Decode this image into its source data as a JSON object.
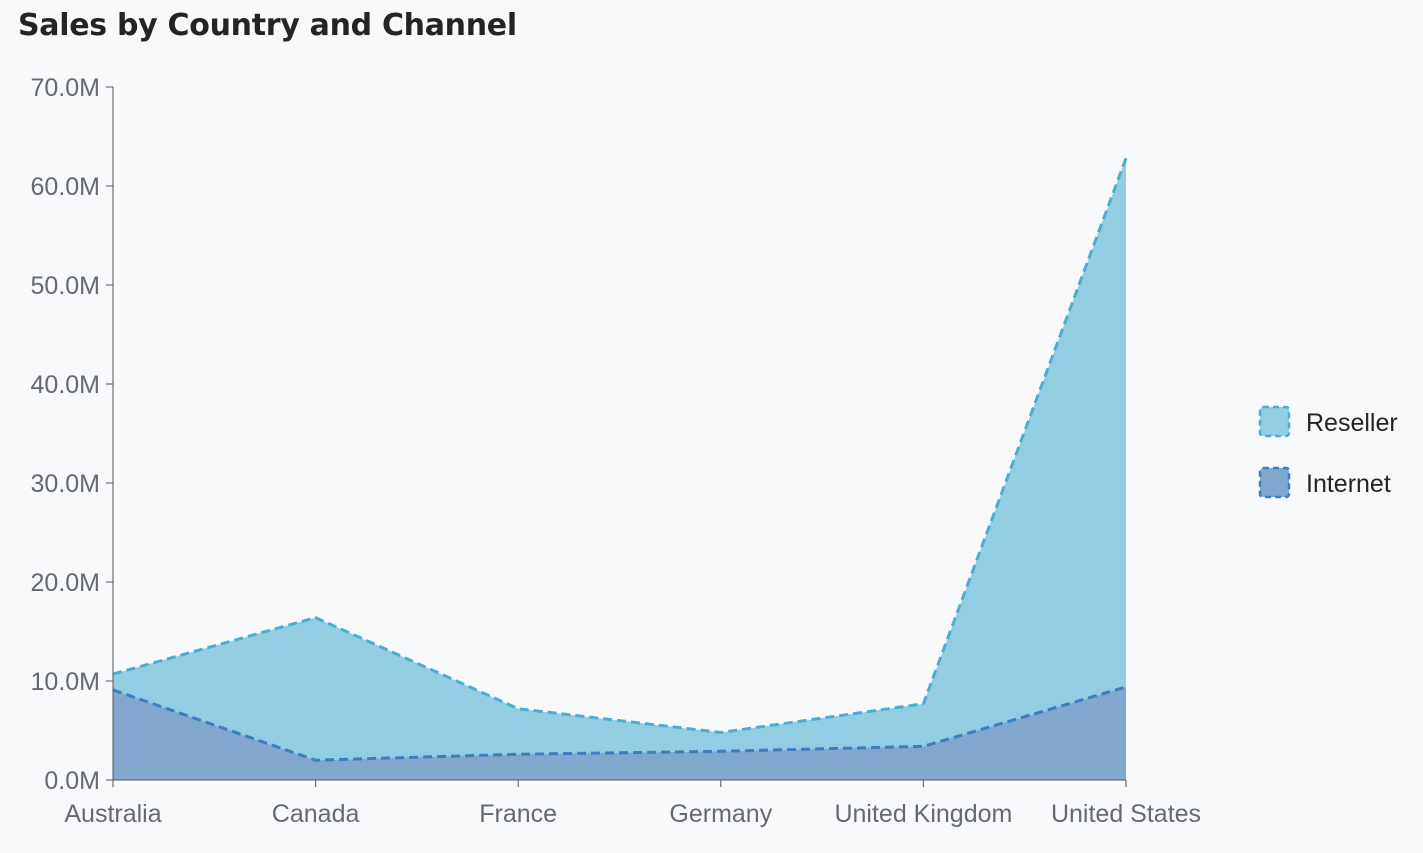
{
  "chart_data": {
    "type": "area",
    "stacked": true,
    "title": "Sales by Country and Channel",
    "categories": [
      "Australia",
      "Canada",
      "France",
      "Germany",
      "United Kingdom",
      "United States"
    ],
    "series": [
      {
        "name": "Internet",
        "values": [
          9.1,
          2.0,
          2.6,
          2.9,
          3.4,
          9.4
        ],
        "color": "#82a8cf",
        "stroke": "#3b7fc0"
      },
      {
        "name": "Reseller",
        "values": [
          1.6,
          14.4,
          4.6,
          1.9,
          4.3,
          53.4
        ],
        "color": "#93cde4",
        "stroke": "#4aaed4"
      }
    ],
    "y_ticks": [
      "0.0M",
      "10.0M",
      "20.0M",
      "30.0M",
      "40.0M",
      "50.0M",
      "60.0M",
      "70.0M"
    ],
    "ylim": [
      0,
      70
    ],
    "value_unit": "M",
    "xlabel": "",
    "ylabel": "",
    "legend": {
      "position": "right",
      "order": [
        "Reseller",
        "Internet"
      ]
    },
    "grid": false
  }
}
